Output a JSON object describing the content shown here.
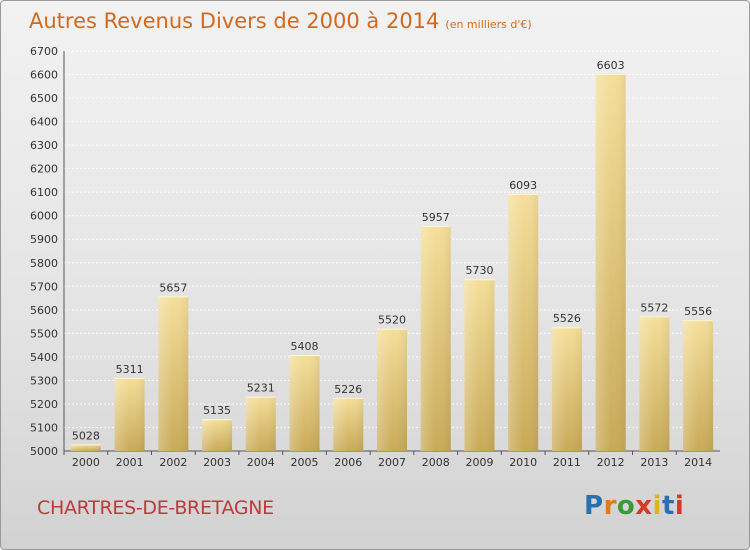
{
  "title": "Autres Revenus Divers de 2000 à 2014",
  "subtitle": "(en milliers d'€)",
  "location": "CHARTRES-DE-BRETAGNE",
  "brand": {
    "text": "Proxiti",
    "colors": [
      "#2a6fb0",
      "#e07b1a",
      "#3a9a3a",
      "#d43a2a",
      "#e0b41a",
      "#2a6fb0",
      "#d43a2a"
    ]
  },
  "colors": {
    "title": "#d2691e",
    "location": "#c0393b",
    "bar_top": "#f5df9a",
    "bar_bottom": "#c9aa58",
    "grid": "#ffffff"
  },
  "chart_data": {
    "type": "bar",
    "title": "Autres Revenus Divers de 2000 à 2014",
    "categories": [
      "2000",
      "2001",
      "2002",
      "2003",
      "2004",
      "2005",
      "2006",
      "2007",
      "2008",
      "2009",
      "2010",
      "2011",
      "2012",
      "2013",
      "2014"
    ],
    "values": [
      5028,
      5311,
      5657,
      5135,
      5231,
      5408,
      5226,
      5520,
      5957,
      5730,
      6093,
      5526,
      6603,
      5572,
      5556
    ],
    "ylim": [
      5000,
      6700
    ],
    "yticks": [
      5000,
      5100,
      5200,
      5300,
      5400,
      5500,
      5600,
      5700,
      5800,
      5900,
      6000,
      6100,
      6200,
      6300,
      6400,
      6500,
      6600,
      6700
    ],
    "grid": true,
    "xlabel": "",
    "ylabel": ""
  }
}
